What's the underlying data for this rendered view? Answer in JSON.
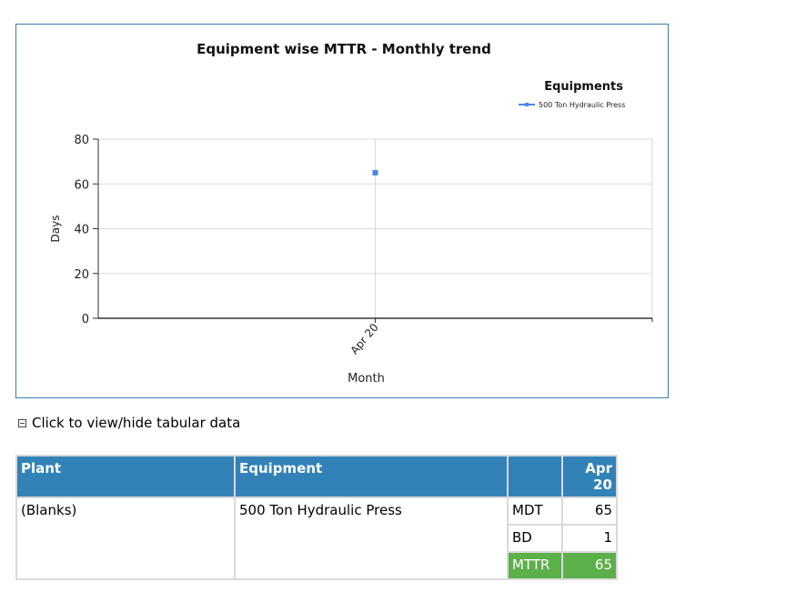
{
  "chart_data": {
    "type": "line",
    "title": "Equipment wise MTTR - Monthly trend",
    "xlabel": "Month",
    "ylabel": "Days",
    "categories": [
      "Apr 20"
    ],
    "series": [
      {
        "name": "500 Ton Hydraulic Press",
        "values": [
          65
        ]
      }
    ],
    "ylim": [
      0,
      80
    ],
    "yticks": [
      0,
      20,
      40,
      60,
      80
    ],
    "legend_title": "Equipments",
    "legend_position": "top-right",
    "grid": true,
    "series_color": "#4a86e8"
  },
  "toggle": {
    "label": "Click to view/hide tabular data"
  },
  "table": {
    "headers": {
      "plant": "Plant",
      "equipment": "Equipment",
      "metric": "",
      "month_line1": "Apr",
      "month_line2": "20"
    },
    "plant": "(Blanks)",
    "equipment": "500 Ton Hydraulic Press",
    "rows": [
      {
        "metric": "MDT",
        "value": "65"
      },
      {
        "metric": "BD",
        "value": "1"
      },
      {
        "metric": "MTTR",
        "value": "65"
      }
    ]
  },
  "colors": {
    "header_bg": "#3282b8",
    "highlight_bg": "#5cb04a",
    "frame_border": "#3b7bb0"
  }
}
